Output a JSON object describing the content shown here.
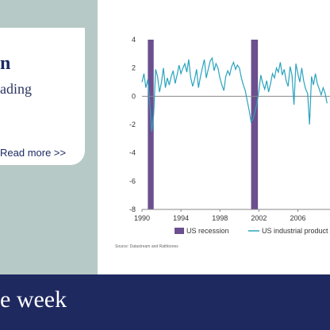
{
  "card": {
    "title": "n",
    "subtitle": "ading",
    "read_more": "Read more >>"
  },
  "footer": {
    "text": "e week"
  },
  "colors": {
    "panel": "#b7c9c6",
    "navy": "#1e2960",
    "recession": "#6b4f8e",
    "series": "#2aa3bd"
  },
  "chart_data": {
    "type": "line",
    "title": "",
    "xlabel": "",
    "ylabel": "",
    "xlim": [
      1990,
      2009.3
    ],
    "ylim": [
      -8,
      4
    ],
    "x_ticks": [
      "1990",
      "1994",
      "1998",
      "2002",
      "2006"
    ],
    "y_ticks": [
      "4",
      "2",
      "0",
      "-2",
      "-4",
      "-6",
      "-8"
    ],
    "legend_position": "bottom",
    "source": "Source: Datastream and Rathbones",
    "recessions": {
      "name": "US recession",
      "periods": [
        [
          1990.6,
          1991.2
        ],
        [
          2001.2,
          2001.9
        ]
      ]
    },
    "series": [
      {
        "name": "US industrial product",
        "x": [
          1990.0,
          1990.2,
          1990.4,
          1990.6,
          1990.8,
          1991.0,
          1991.2,
          1991.4,
          1991.6,
          1991.8,
          1992.0,
          1992.2,
          1992.4,
          1992.6,
          1992.8,
          1993.0,
          1993.2,
          1993.4,
          1993.6,
          1993.8,
          1994.0,
          1994.2,
          1994.4,
          1994.6,
          1994.8,
          1995.0,
          1995.2,
          1995.4,
          1995.6,
          1995.8,
          1996.0,
          1996.2,
          1996.4,
          1996.6,
          1996.8,
          1997.0,
          1997.2,
          1997.4,
          1997.6,
          1997.8,
          1998.0,
          1998.2,
          1998.4,
          1998.6,
          1998.8,
          1999.0,
          1999.2,
          1999.4,
          1999.6,
          1999.8,
          2000.0,
          2000.2,
          2000.4,
          2000.6,
          2000.8,
          2001.0,
          2001.2,
          2001.4,
          2001.6,
          2001.8,
          2002.0,
          2002.2,
          2002.4,
          2002.6,
          2002.8,
          2003.0,
          2003.2,
          2003.4,
          2003.6,
          2003.8,
          2004.0,
          2004.2,
          2004.4,
          2004.6,
          2004.8,
          2005.0,
          2005.2,
          2005.4,
          2005.6,
          2005.8,
          2006.0,
          2006.2,
          2006.4,
          2006.6,
          2006.8,
          2007.0,
          2007.2,
          2007.4,
          2007.6,
          2007.8,
          2008.0,
          2008.2,
          2008.4,
          2008.6,
          2008.8,
          2009.0
        ],
        "values": [
          1.0,
          1.6,
          0.6,
          1.2,
          -0.4,
          -2.5,
          -1.3,
          1.9,
          1.4,
          0.3,
          1.0,
          2.0,
          0.6,
          1.3,
          0.8,
          1.4,
          1.8,
          0.9,
          1.5,
          2.2,
          1.6,
          2.0,
          2.3,
          1.7,
          2.6,
          1.3,
          0.7,
          1.2,
          1.9,
          0.6,
          1.4,
          2.0,
          2.6,
          1.3,
          1.9,
          2.5,
          2.7,
          1.8,
          2.3,
          2.0,
          1.3,
          0.8,
          0.4,
          1.4,
          1.8,
          1.5,
          2.1,
          2.4,
          1.9,
          2.2,
          2.0,
          1.3,
          0.8,
          0.4,
          -0.3,
          -1.0,
          -1.8,
          -1.6,
          -1.1,
          -0.5,
          0.4,
          1.5,
          0.9,
          0.5,
          1.1,
          0.3,
          0.9,
          1.6,
          1.3,
          2.0,
          1.7,
          2.4,
          1.5,
          1.9,
          1.1,
          0.7,
          2.1,
          1.5,
          -0.6,
          2.3,
          1.6,
          1.0,
          2.0,
          1.1,
          0.5,
          0.2,
          -2.0,
          1.4,
          0.8,
          1.6,
          0.9,
          0.5,
          0.1,
          0.6,
          0.2,
          -0.5
        ]
      }
    ]
  }
}
